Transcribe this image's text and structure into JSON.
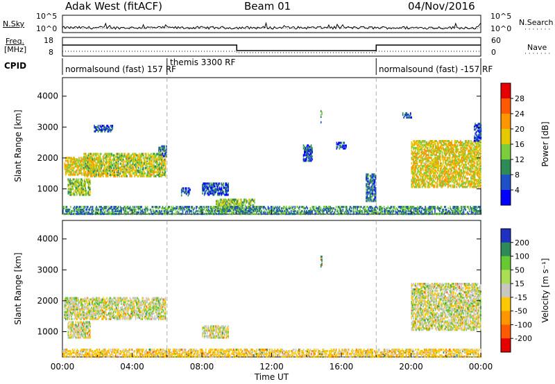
{
  "header": {
    "station": "Adak West (fitACF)",
    "beam": "Beam 01",
    "date": "04/Nov/2016"
  },
  "noise_panel": {
    "left_label": "N.Sky",
    "right_label": "N.Search",
    "left_ticks": [
      "10^5",
      "10^0"
    ],
    "right_ticks": [
      "10^5",
      "10^0"
    ]
  },
  "freq_panel": {
    "left_label_1": "Freq.",
    "left_label_2": "[MHz]",
    "left_ticks": [
      "18",
      "8"
    ],
    "right_label": "Nave",
    "right_ticks": [
      "60",
      "0"
    ]
  },
  "cpid_panel": {
    "label": "CPID",
    "segments": [
      {
        "start_hour": 0,
        "end_hour": 6,
        "text": "normalsound (fast) 157 RF"
      },
      {
        "start_hour": 6,
        "end_hour": 18,
        "text": "themis 3300 RF"
      },
      {
        "start_hour": 18,
        "end_hour": 24,
        "text": "normalsound (fast) -157 RF"
      }
    ]
  },
  "chart_data": [
    {
      "type": "heatmap",
      "panel": "power",
      "ylabel": "Slant Range [km]",
      "ylim": [
        180,
        4600
      ],
      "y_ticks": [
        1000,
        2000,
        3000,
        4000
      ],
      "xlim_hours": [
        0,
        24
      ],
      "colorbar_label": "Power [dB]",
      "colorbar_ticks": [
        "28",
        "24",
        "20",
        "16",
        "12",
        "8",
        "4"
      ],
      "colorbar_colors": [
        "#e60000",
        "#ff5a00",
        "#ff9600",
        "#e6c800",
        "#7ccd3c",
        "#2e8b57",
        "#1e50c8",
        "#0000ff"
      ],
      "echo_regions": [
        {
          "t0": 0.1,
          "t1": 2.2,
          "r0": 1450,
          "r1": 2000,
          "level": 18
        },
        {
          "t0": 0.3,
          "t1": 1.6,
          "r0": 800,
          "r1": 1300,
          "level": 14
        },
        {
          "t0": 1.2,
          "t1": 5.9,
          "r0": 1400,
          "r1": 2150,
          "level": 16
        },
        {
          "t0": 1.8,
          "t1": 2.9,
          "r0": 2850,
          "r1": 3050,
          "level": 6
        },
        {
          "t0": 5.5,
          "t1": 5.95,
          "r0": 2050,
          "r1": 2400,
          "level": 9
        },
        {
          "t0": 6.8,
          "t1": 7.3,
          "r0": 780,
          "r1": 1050,
          "level": 6
        },
        {
          "t0": 8.0,
          "t1": 9.5,
          "r0": 800,
          "r1": 1200,
          "level": 6
        },
        {
          "t0": 8.8,
          "t1": 11.0,
          "r0": 280,
          "r1": 650,
          "level": 14
        },
        {
          "t0": 13.8,
          "t1": 14.3,
          "r0": 1900,
          "r1": 2400,
          "level": 6
        },
        {
          "t0": 14.8,
          "t1": 14.9,
          "r0": 3100,
          "r1": 3550,
          "level": 11
        },
        {
          "t0": 15.7,
          "t1": 16.3,
          "r0": 2300,
          "r1": 2500,
          "level": 5
        },
        {
          "t0": 17.4,
          "t1": 18.0,
          "r0": 600,
          "r1": 1500,
          "level": 8
        },
        {
          "t0": 0.0,
          "t1": 24.0,
          "r0": 180,
          "r1": 420,
          "level": 10
        },
        {
          "t0": 20.0,
          "t1": 24.0,
          "r0": 1050,
          "r1": 2550,
          "level": 18
        },
        {
          "t0": 19.5,
          "t1": 20.0,
          "r0": 3300,
          "r1": 3450,
          "level": 6
        },
        {
          "t0": 23.6,
          "t1": 24.0,
          "r0": 2550,
          "r1": 3100,
          "level": 5
        }
      ]
    },
    {
      "type": "heatmap",
      "panel": "velocity",
      "ylabel": "Slant Range [km]",
      "ylim": [
        180,
        4600
      ],
      "y_ticks": [
        1000,
        2000,
        3000,
        4000
      ],
      "xlim_hours": [
        0,
        24
      ],
      "x_ticks": [
        "00:00",
        "04:00",
        "08:00",
        "12:00",
        "16:00",
        "20:00",
        "00:00"
      ],
      "xlabel": "Time UT",
      "colorbar_label": "Velocity [m s⁻¹]",
      "colorbar_ticks": [
        "200",
        "100",
        "50",
        "15",
        "-15",
        "-50",
        "-100",
        "-200"
      ],
      "colorbar_colors": [
        "#2030c0",
        "#2e8b57",
        "#66c833",
        "#aade55",
        "#c8c8c0",
        "#ffc800",
        "#ff9600",
        "#ff5a00",
        "#e60000"
      ],
      "echo_regions": [
        {
          "t0": 0.1,
          "t1": 5.9,
          "r0": 1400,
          "r1": 2100,
          "level": 0
        },
        {
          "t0": 0.3,
          "t1": 1.6,
          "r0": 800,
          "r1": 1300,
          "level": 0
        },
        {
          "t0": 8.0,
          "t1": 9.5,
          "r0": 800,
          "r1": 1200,
          "level": 0
        },
        {
          "t0": 0.0,
          "t1": 24.0,
          "r0": 180,
          "r1": 420,
          "level": -30
        },
        {
          "t0": 20.0,
          "t1": 24.0,
          "r0": 1050,
          "r1": 2550,
          "level": 0
        },
        {
          "t0": 14.8,
          "t1": 14.9,
          "r0": 3100,
          "r1": 3550,
          "level": 150
        }
      ]
    }
  ]
}
